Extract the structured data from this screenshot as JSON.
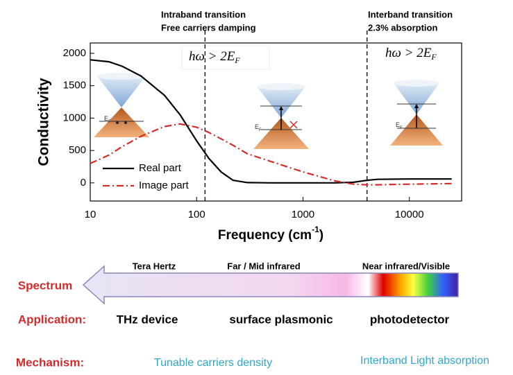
{
  "chart_data": {
    "type": "line",
    "xscale": "log",
    "legend": "lower left",
    "x": [
      10,
      15,
      20,
      30,
      50,
      70,
      100,
      130,
      170,
      220,
      300,
      500,
      1000,
      2000,
      3000,
      4000,
      5000,
      10000,
      25000
    ],
    "series": [
      {
        "name": "Real part",
        "color": "#000000",
        "dash": "solid",
        "values": [
          1900,
          1870,
          1800,
          1650,
          1350,
          1050,
          650,
          380,
          170,
          40,
          5,
          0,
          0,
          0,
          10,
          40,
          55,
          60,
          60
        ]
      },
      {
        "name": "Image part",
        "color": "#d42a2a",
        "dash": "dashdot",
        "values": [
          300,
          430,
          560,
          720,
          870,
          910,
          860,
          780,
          680,
          580,
          450,
          330,
          170,
          30,
          -20,
          -30,
          -30,
          -20,
          -10
        ]
      }
    ],
    "xlim": [
      10,
      31000
    ],
    "ylim": [
      -280,
      2160
    ],
    "xticks": [
      10,
      100,
      1000,
      10000
    ],
    "yticks": [
      0,
      500,
      1000,
      1500,
      2000
    ],
    "ylabel": "Conductivity",
    "xlabel": {
      "text": "Frequency (cm",
      "sup": "-1",
      "end": ")"
    },
    "vlines": [
      120,
      4000
    ],
    "annotations": {
      "intraband": [
        "Intraband transition",
        "Free carriers damping"
      ],
      "interband": [
        "Interband transition",
        "2.3% absorption"
      ],
      "formula": {
        "text": "hω > 2E",
        "sub": "F"
      },
      "fermi": {
        "text": "E",
        "sub": "F"
      }
    }
  },
  "spectrum": {
    "title": "Spectrum",
    "bands": [
      "Tera Hertz",
      "Far / Mid infrared",
      "Near  infrared/Visible"
    ]
  },
  "rows": [
    {
      "label": "Application:",
      "items": [
        "THz device",
        "surface plasmonic",
        "photodetector"
      ]
    },
    {
      "label": "Mechanism:",
      "items": [
        "Tunable carriers density",
        "Interband Light absorption"
      ]
    }
  ]
}
